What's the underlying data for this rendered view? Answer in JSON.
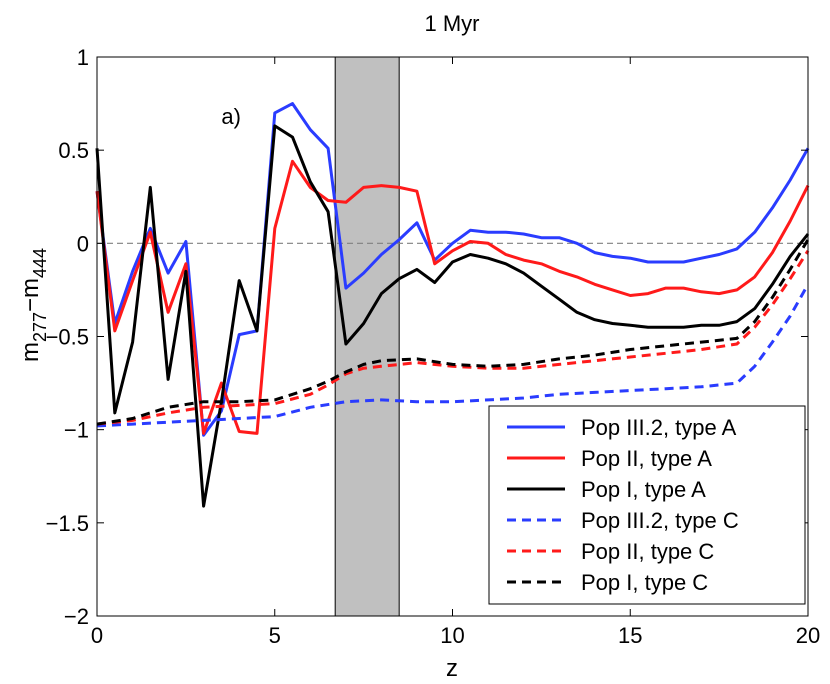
{
  "chart_data": {
    "type": "line",
    "title": "1 Myr",
    "panel_label": "a)",
    "xlabel": "z",
    "ylabel": {
      "base": "m",
      "sub1": "277",
      "minus": "−",
      "base2": "m",
      "sub2": "444"
    },
    "xlim": [
      0,
      20
    ],
    "ylim": [
      -2,
      1
    ],
    "xticks": [
      0,
      5,
      10,
      15,
      20
    ],
    "xtick_labels": [
      "0",
      "5",
      "10",
      "15",
      "20"
    ],
    "yticks": [
      -2,
      -1.5,
      -1,
      -0.5,
      0,
      0.5,
      1
    ],
    "ytick_labels": [
      "−2",
      "−1.5",
      "−1",
      "−0.5",
      "0",
      "0.5",
      "1"
    ],
    "shaded_region": {
      "x": [
        6.7,
        8.5
      ],
      "color": "#c0c0c0"
    },
    "reference_line": {
      "y": 0,
      "style": "dashed",
      "color": "#808080"
    },
    "legend_position": "bottom-right",
    "series": [
      {
        "name": "Pop III.2, type A",
        "color": "#2a3cff",
        "dash": "solid",
        "x": [
          0,
          0.5,
          1,
          1.5,
          2,
          2.5,
          3,
          3.5,
          4,
          4.5,
          5,
          5.5,
          6,
          6.5,
          7,
          7.5,
          8,
          8.5,
          9,
          9.5,
          10,
          10.5,
          11,
          11.5,
          12,
          12.5,
          13,
          13.5,
          14,
          14.5,
          15,
          15.5,
          16,
          16.5,
          17,
          17.5,
          18,
          18.5,
          19,
          19.5,
          20
        ],
        "y": [
          0.28,
          -0.43,
          -0.15,
          0.08,
          -0.16,
          0.01,
          -1.03,
          -0.9,
          -0.49,
          -0.47,
          0.7,
          0.75,
          0.61,
          0.51,
          -0.24,
          -0.16,
          -0.06,
          0.02,
          0.11,
          -0.09,
          0.0,
          0.07,
          0.06,
          0.06,
          0.05,
          0.03,
          0.03,
          0.0,
          -0.05,
          -0.07,
          -0.08,
          -0.1,
          -0.1,
          -0.1,
          -0.08,
          -0.06,
          -0.03,
          0.06,
          0.19,
          0.34,
          0.51
        ]
      },
      {
        "name": "Pop II, type A",
        "color": "#ff1a1a",
        "dash": "solid",
        "x": [
          0,
          0.5,
          1,
          1.5,
          2,
          2.5,
          3,
          3.5,
          4,
          4.5,
          5,
          5.5,
          6,
          6.5,
          7,
          7.5,
          8,
          8.5,
          9,
          9.5,
          10,
          10.5,
          11,
          11.5,
          12,
          12.5,
          13,
          13.5,
          14,
          14.5,
          15,
          15.5,
          16,
          16.5,
          17,
          17.5,
          18,
          18.5,
          19,
          19.5,
          20
        ],
        "y": [
          0.28,
          -0.47,
          -0.2,
          0.06,
          -0.37,
          -0.11,
          -1.02,
          -0.75,
          -1.01,
          -1.02,
          0.08,
          0.44,
          0.3,
          0.23,
          0.22,
          0.3,
          0.31,
          0.3,
          0.28,
          -0.11,
          -0.04,
          0.01,
          0.0,
          -0.06,
          -0.09,
          -0.11,
          -0.15,
          -0.18,
          -0.22,
          -0.25,
          -0.28,
          -0.27,
          -0.24,
          -0.24,
          -0.26,
          -0.27,
          -0.25,
          -0.18,
          -0.05,
          0.12,
          0.31
        ]
      },
      {
        "name": "Pop I, type A",
        "color": "#000000",
        "dash": "solid",
        "x": [
          0,
          0.5,
          1,
          1.5,
          2,
          2.5,
          3,
          3.5,
          4,
          4.5,
          5,
          5.5,
          6,
          6.5,
          7,
          7.5,
          8,
          8.5,
          9,
          9.5,
          10,
          10.5,
          11,
          11.5,
          12,
          12.5,
          13,
          13.5,
          14,
          14.5,
          15,
          15.5,
          16,
          16.5,
          17,
          17.5,
          18,
          18.5,
          19,
          19.5,
          20
        ],
        "y": [
          0.51,
          -0.91,
          -0.53,
          0.3,
          -0.73,
          -0.15,
          -1.41,
          -0.85,
          -0.2,
          -0.47,
          0.63,
          0.57,
          0.33,
          0.17,
          -0.54,
          -0.43,
          -0.27,
          -0.19,
          -0.14,
          -0.21,
          -0.1,
          -0.06,
          -0.08,
          -0.11,
          -0.16,
          -0.23,
          -0.3,
          -0.37,
          -0.41,
          -0.43,
          -0.44,
          -0.45,
          -0.45,
          -0.45,
          -0.44,
          -0.44,
          -0.42,
          -0.35,
          -0.22,
          -0.07,
          0.05
        ]
      },
      {
        "name": "Pop III.2, type C",
        "color": "#2a3cff",
        "dash": "dashed",
        "x": [
          0,
          1,
          2,
          3,
          4,
          5,
          6,
          7,
          8,
          9,
          10,
          11,
          12,
          13,
          14,
          15,
          16,
          17,
          18,
          18.5,
          19,
          19.5,
          20
        ],
        "y": [
          -0.98,
          -0.97,
          -0.96,
          -0.95,
          -0.94,
          -0.93,
          -0.88,
          -0.85,
          -0.84,
          -0.85,
          -0.85,
          -0.84,
          -0.83,
          -0.81,
          -0.8,
          -0.79,
          -0.78,
          -0.77,
          -0.75,
          -0.66,
          -0.53,
          -0.39,
          -0.22
        ]
      },
      {
        "name": "Pop II, type C",
        "color": "#ff1a1a",
        "dash": "dashed",
        "x": [
          0,
          1,
          2,
          3,
          4,
          5,
          6,
          6.5,
          7,
          7.5,
          8,
          9,
          10,
          11,
          12,
          13,
          14,
          15,
          16,
          17,
          18,
          18.5,
          19,
          19.5,
          20
        ],
        "y": [
          -0.97,
          -0.95,
          -0.91,
          -0.88,
          -0.87,
          -0.86,
          -0.81,
          -0.76,
          -0.7,
          -0.67,
          -0.66,
          -0.64,
          -0.66,
          -0.67,
          -0.67,
          -0.65,
          -0.63,
          -0.61,
          -0.59,
          -0.57,
          -0.54,
          -0.45,
          -0.33,
          -0.19,
          -0.04
        ]
      },
      {
        "name": "Pop I, type C",
        "color": "#000000",
        "dash": "dashed",
        "x": [
          0,
          1,
          2,
          3,
          4,
          5,
          6,
          6.5,
          7,
          7.5,
          8,
          9,
          10,
          11,
          12,
          13,
          14,
          15,
          16,
          17,
          18,
          18.5,
          19,
          19.5,
          20
        ],
        "y": [
          -0.97,
          -0.94,
          -0.88,
          -0.85,
          -0.85,
          -0.84,
          -0.78,
          -0.74,
          -0.69,
          -0.65,
          -0.63,
          -0.62,
          -0.65,
          -0.66,
          -0.65,
          -0.62,
          -0.6,
          -0.57,
          -0.55,
          -0.53,
          -0.51,
          -0.42,
          -0.29,
          -0.14,
          0.02
        ]
      }
    ]
  }
}
